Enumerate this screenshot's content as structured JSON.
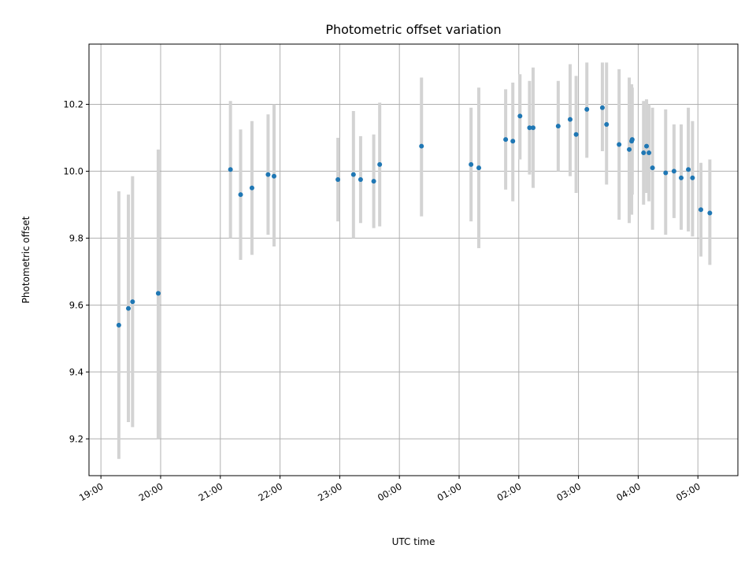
{
  "chart_data": {
    "type": "scatter",
    "title": "Photometric offset variation",
    "xlabel": "UTC time",
    "ylabel": "Photometric offset",
    "x_ticks": [
      "19:00",
      "20:00",
      "21:00",
      "22:00",
      "23:00",
      "00:00",
      "01:00",
      "02:00",
      "03:00",
      "04:00",
      "05:00"
    ],
    "x_unit": "hours (19:00 = 19.0, 05:00 next day = 29.0)",
    "xlim": [
      18.8,
      29.67
    ],
    "ylim": [
      9.09,
      10.38
    ],
    "y_ticks": [
      9.2,
      9.4,
      9.6,
      9.8,
      10.0,
      10.2
    ],
    "grid": true,
    "colors": {
      "marker": "#1f77b4",
      "errorbar": "#d3d3d3",
      "grid": "#b0b0b0"
    },
    "points": [
      {
        "x": 19.3,
        "y": 9.54,
        "lo": 9.14,
        "hi": 9.94
      },
      {
        "x": 19.46,
        "y": 9.59,
        "lo": 9.25,
        "hi": 9.93
      },
      {
        "x": 19.53,
        "y": 9.61,
        "lo": 9.235,
        "hi": 9.985
      },
      {
        "x": 19.96,
        "y": 9.635,
        "lo": 9.2,
        "hi": 10.065
      },
      {
        "x": 21.17,
        "y": 10.005,
        "lo": 9.8,
        "hi": 10.21
      },
      {
        "x": 21.34,
        "y": 9.93,
        "lo": 9.735,
        "hi": 10.125
      },
      {
        "x": 21.53,
        "y": 9.95,
        "lo": 9.75,
        "hi": 10.15
      },
      {
        "x": 21.8,
        "y": 9.99,
        "lo": 9.81,
        "hi": 10.17
      },
      {
        "x": 21.9,
        "y": 9.985,
        "lo": 9.775,
        "hi": 10.2
      },
      {
        "x": 22.97,
        "y": 9.975,
        "lo": 9.85,
        "hi": 10.1
      },
      {
        "x": 23.23,
        "y": 9.99,
        "lo": 9.8,
        "hi": 10.18
      },
      {
        "x": 23.35,
        "y": 9.975,
        "lo": 9.845,
        "hi": 10.105
      },
      {
        "x": 23.57,
        "y": 9.97,
        "lo": 9.83,
        "hi": 10.11
      },
      {
        "x": 23.67,
        "y": 10.02,
        "lo": 9.835,
        "hi": 10.205
      },
      {
        "x": 24.37,
        "y": 10.075,
        "lo": 9.865,
        "hi": 10.28
      },
      {
        "x": 25.2,
        "y": 10.02,
        "lo": 9.85,
        "hi": 10.19
      },
      {
        "x": 25.33,
        "y": 10.01,
        "lo": 9.77,
        "hi": 10.25
      },
      {
        "x": 25.78,
        "y": 10.095,
        "lo": 9.945,
        "hi": 10.245
      },
      {
        "x": 25.9,
        "y": 10.09,
        "lo": 9.91,
        "hi": 10.265
      },
      {
        "x": 26.02,
        "y": 10.165,
        "lo": 10.035,
        "hi": 10.29
      },
      {
        "x": 26.18,
        "y": 10.13,
        "lo": 9.99,
        "hi": 10.27
      },
      {
        "x": 26.24,
        "y": 10.13,
        "lo": 9.95,
        "hi": 10.31
      },
      {
        "x": 26.66,
        "y": 10.135,
        "lo": 10.0,
        "hi": 10.27
      },
      {
        "x": 26.86,
        "y": 10.155,
        "lo": 9.985,
        "hi": 10.32
      },
      {
        "x": 26.96,
        "y": 10.11,
        "lo": 9.935,
        "hi": 10.285
      },
      {
        "x": 27.14,
        "y": 10.185,
        "lo": 10.04,
        "hi": 10.325
      },
      {
        "x": 27.4,
        "y": 10.19,
        "lo": 10.06,
        "hi": 10.325
      },
      {
        "x": 27.47,
        "y": 10.14,
        "lo": 9.96,
        "hi": 10.325
      },
      {
        "x": 27.68,
        "y": 10.08,
        "lo": 9.855,
        "hi": 10.305
      },
      {
        "x": 27.85,
        "y": 10.065,
        "lo": 9.845,
        "hi": 10.28
      },
      {
        "x": 27.89,
        "y": 10.09,
        "lo": 9.87,
        "hi": 10.26
      },
      {
        "x": 27.9,
        "y": 10.095,
        "lo": 9.93,
        "hi": 10.25
      },
      {
        "x": 28.09,
        "y": 10.055,
        "lo": 9.9,
        "hi": 10.21
      },
      {
        "x": 28.14,
        "y": 10.075,
        "lo": 9.935,
        "hi": 10.215
      },
      {
        "x": 28.18,
        "y": 10.055,
        "lo": 9.91,
        "hi": 10.2
      },
      {
        "x": 28.24,
        "y": 10.01,
        "lo": 9.825,
        "hi": 10.19
      },
      {
        "x": 28.46,
        "y": 9.995,
        "lo": 9.81,
        "hi": 10.185
      },
      {
        "x": 28.6,
        "y": 10.0,
        "lo": 9.86,
        "hi": 10.14
      },
      {
        "x": 28.72,
        "y": 9.98,
        "lo": 9.825,
        "hi": 10.14
      },
      {
        "x": 28.84,
        "y": 10.005,
        "lo": 9.82,
        "hi": 10.19
      },
      {
        "x": 28.91,
        "y": 9.98,
        "lo": 9.805,
        "hi": 10.15
      },
      {
        "x": 29.05,
        "y": 9.885,
        "lo": 9.745,
        "hi": 10.025
      },
      {
        "x": 29.2,
        "y": 9.875,
        "lo": 9.72,
        "hi": 10.035
      }
    ]
  }
}
